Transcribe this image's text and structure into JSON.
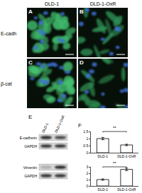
{
  "figure": {
    "columns": [
      "DLD-1",
      "DLD-1-OxR"
    ],
    "rows": [
      "E-cadh",
      "β-cat"
    ],
    "panels": [
      "A",
      "B",
      "C",
      "D"
    ],
    "blot": {
      "label": "E",
      "lanes": [
        "DLD-1",
        "DLD-1-OxR"
      ],
      "bands": [
        "E-cadherin",
        "GAPDH",
        "Vimentin",
        "GAPDH"
      ]
    },
    "chart_label": "F"
  },
  "chart_data": [
    {
      "type": "bar",
      "categories": [
        "DLD-1",
        "DLD-1-OxR"
      ],
      "values": [
        1.0,
        0.55
      ],
      "errors": [
        0.08,
        0.05
      ],
      "colors": [
        "#ffffff",
        "#ffffff"
      ],
      "ylim": [
        0,
        1.5
      ],
      "yticks": [
        0,
        0.5,
        1,
        1.5
      ],
      "annotations": [
        "**"
      ]
    },
    {
      "type": "bar",
      "categories": [
        "DLD-1",
        "DLD-1-OxR"
      ],
      "values": [
        1.0,
        2.6
      ],
      "errors": [
        0.1,
        0.2
      ],
      "colors": [
        "#ffffff",
        "#ffffff"
      ],
      "ylim": [
        0,
        3
      ],
      "yticks": [
        0,
        1,
        2,
        3
      ],
      "annotations": [
        "**"
      ]
    }
  ]
}
